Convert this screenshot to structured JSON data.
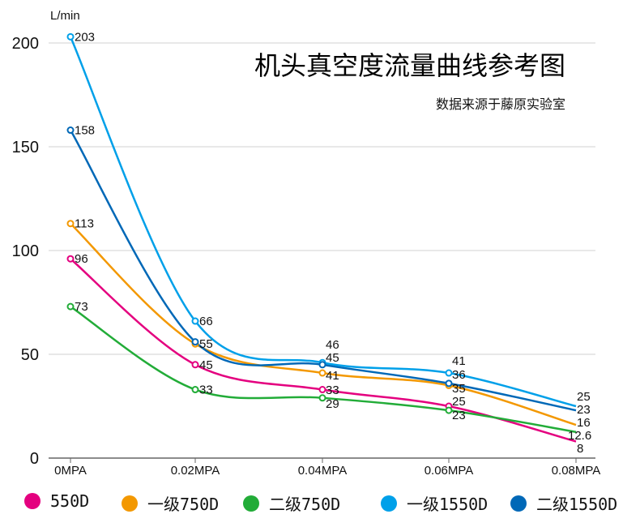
{
  "chart_data": {
    "type": "line",
    "title": "机头真空度流量曲线参考图",
    "subtitle": "数据来源于藤原实验室",
    "ylabel": "L/min",
    "categories": [
      "0MPA",
      "0.02MPA",
      "0.04MPA",
      "0.06MPA",
      "0.08MPA"
    ],
    "yticks": [
      "0",
      "50",
      "100",
      "150",
      "200"
    ],
    "ylim": [
      0,
      200
    ],
    "grid": true,
    "legend": "bottom",
    "series": [
      {
        "name": "550D",
        "color": "#e4007f",
        "values": [
          96,
          45,
          33,
          25,
          8
        ],
        "labels": [
          "96",
          "45",
          "33",
          "25",
          "8"
        ]
      },
      {
        "name": "一级750D",
        "color": "#f39800",
        "values": [
          113,
          55,
          41,
          35,
          16
        ],
        "labels": [
          "113",
          "55",
          "41",
          "35",
          "16"
        ]
      },
      {
        "name": "二级750D",
        "color": "#22ac38",
        "values": [
          73,
          33,
          29,
          23,
          12.6
        ],
        "labels": [
          "73",
          "33",
          "29",
          "23",
          "12.6"
        ]
      },
      {
        "name": "一级1550D",
        "color": "#00a0e9",
        "values": [
          203,
          66,
          46,
          41,
          25
        ],
        "labels": [
          "203",
          "66",
          "46",
          "41",
          "25"
        ]
      },
      {
        "name": "二级1550D",
        "color": "#0068b7",
        "values": [
          158,
          56,
          45,
          36,
          23
        ],
        "labels": [
          "158",
          null,
          "45",
          "36",
          "23"
        ]
      }
    ]
  }
}
